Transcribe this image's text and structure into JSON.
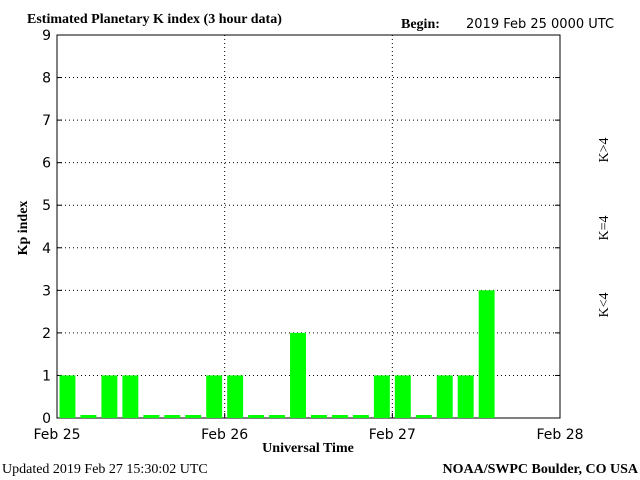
{
  "chart_data": {
    "type": "bar",
    "title": "Estimated Planetary K index (3 hour data)",
    "begin_label": "Begin:",
    "begin": "2019 Feb 25 0000 UTC",
    "y_label": "Kp index",
    "x_label": "Universal Time",
    "updated": "Updated 2019 Feb 27 15:30:02 UTC",
    "source": "NOAA/SWPC Boulder, CO USA",
    "x": [
      0,
      0.125,
      0.25,
      0.375,
      0.5,
      0.625,
      0.75,
      0.875,
      1,
      1.125,
      1.25,
      1.375,
      1.5,
      1.625,
      1.75,
      1.875,
      2,
      2.125,
      2.25,
      2.375,
      2.5
    ],
    "values": [
      1,
      0,
      1,
      1,
      0,
      0,
      0,
      1,
      1,
      0,
      0,
      2,
      0,
      0,
      0,
      1,
      1,
      0,
      1,
      1,
      3
    ],
    "bar_width": 0.125,
    "color": "#00ff00",
    "xlim": [
      0,
      3
    ],
    "xticks": [
      {
        "value": 0,
        "label": "Feb 25"
      },
      {
        "value": 1,
        "label": "Feb 26"
      },
      {
        "value": 2,
        "label": "Feb 27"
      },
      {
        "value": 3,
        "label": "Feb 28"
      }
    ],
    "ylim": [
      0,
      9
    ],
    "yticks": [
      0,
      1,
      2,
      3,
      4,
      5,
      6,
      7,
      8,
      9
    ],
    "grid": true,
    "legend": [
      {
        "label": "K<4",
        "color": "#00e000"
      },
      {
        "label": "K=4",
        "color": "#ffcc00"
      },
      {
        "label": "K>4",
        "color": "#ff3000"
      }
    ]
  }
}
